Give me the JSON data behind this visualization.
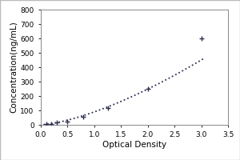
{
  "title": "",
  "xlabel": "Optical Density",
  "ylabel": "Concentration(ng/mL)",
  "xlim": [
    0,
    3.5
  ],
  "ylim": [
    0,
    800
  ],
  "xticks": [
    0,
    0.5,
    1.0,
    1.5,
    2.0,
    2.5,
    3.0,
    3.5
  ],
  "yticks": [
    0,
    100,
    200,
    300,
    400,
    500,
    600,
    700,
    800
  ],
  "data_x": [
    0.1,
    0.2,
    0.3,
    0.5,
    0.8,
    1.25,
    2.0,
    3.0
  ],
  "data_y": [
    4,
    8,
    15,
    25,
    55,
    115,
    250,
    600
  ],
  "curve_color": "#2d3050",
  "marker_color": "#2d3050",
  "bg_color": "#ffffff",
  "plot_bg_color": "#ffffff",
  "border_color": "#999999",
  "outer_border_color": "#aaaaaa",
  "marker": "+",
  "marker_size": 5,
  "line_style": ":",
  "line_width": 1.3,
  "tick_label_fontsize": 6.5,
  "axis_label_fontsize": 7.5
}
